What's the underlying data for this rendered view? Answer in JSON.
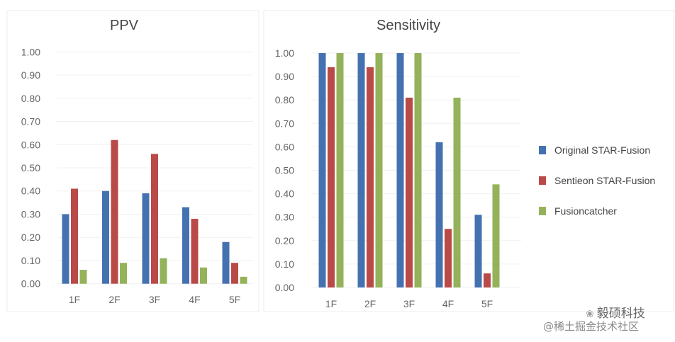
{
  "chart_data": [
    {
      "type": "bar",
      "title": "PPV",
      "categories": [
        "1F",
        "2F",
        "3F",
        "4F",
        "5F"
      ],
      "series": [
        {
          "name": "Original STAR-Fusion",
          "color": "#4472b0",
          "values": [
            0.3,
            0.4,
            0.39,
            0.33,
            0.18
          ]
        },
        {
          "name": "Sentieon STAR-Fusion",
          "color": "#b94a48",
          "values": [
            0.41,
            0.62,
            0.56,
            0.28,
            0.09
          ]
        },
        {
          "name": "Fusioncatcher",
          "color": "#94b25a",
          "values": [
            0.06,
            0.09,
            0.11,
            0.07,
            0.03
          ]
        }
      ],
      "ylim": [
        0,
        1
      ],
      "yticks": [
        "0.00",
        "0.10",
        "0.20",
        "0.30",
        "0.40",
        "0.50",
        "0.60",
        "0.70",
        "0.80",
        "0.90",
        "1.00"
      ],
      "grid": true
    },
    {
      "type": "bar",
      "title": "Sensitivity",
      "categories": [
        "1F",
        "2F",
        "3F",
        "4F",
        "5F"
      ],
      "series": [
        {
          "name": "Original STAR-Fusion",
          "color": "#4472b0",
          "values": [
            1.0,
            1.0,
            1.0,
            0.62,
            0.31
          ]
        },
        {
          "name": "Sentieon STAR-Fusion",
          "color": "#b94a48",
          "values": [
            0.94,
            0.94,
            0.81,
            0.25,
            0.06
          ]
        },
        {
          "name": "Fusioncatcher",
          "color": "#94b25a",
          "values": [
            1.0,
            1.0,
            1.0,
            0.81,
            0.44
          ]
        }
      ],
      "ylim": [
        0,
        1
      ],
      "yticks": [
        "0.00",
        "0.10",
        "0.20",
        "0.30",
        "0.40",
        "0.50",
        "0.60",
        "0.70",
        "0.80",
        "0.90",
        "1.00"
      ],
      "grid": true,
      "legend": "right"
    }
  ],
  "watermark": {
    "brand": "毅硕科技",
    "source": "@稀土掘金技术社区"
  }
}
